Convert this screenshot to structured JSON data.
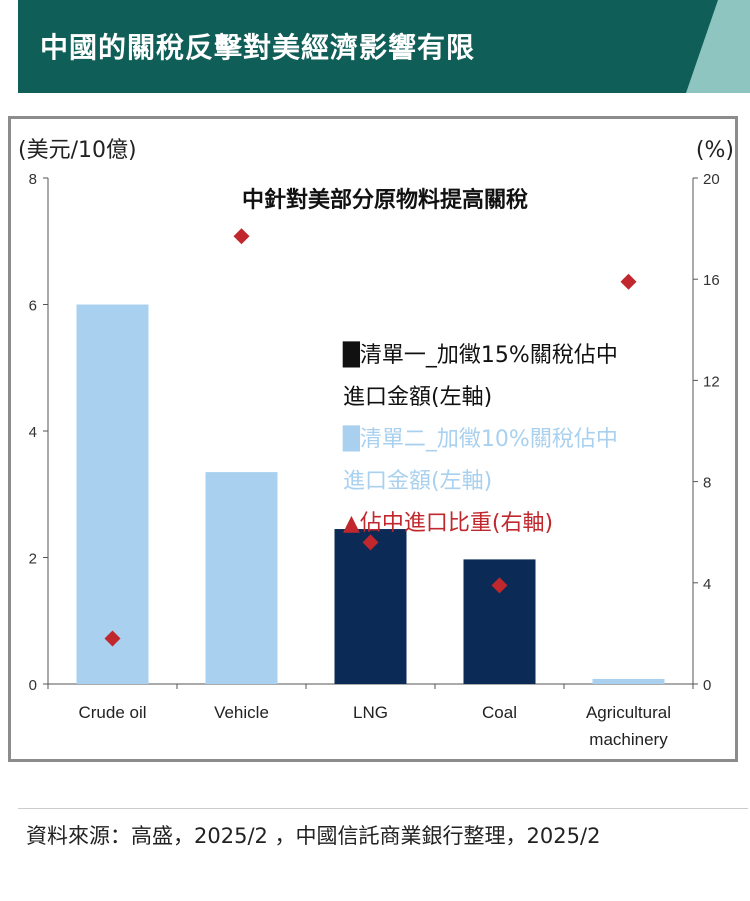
{
  "header": {
    "title": "中國的關稅反擊對美經濟影響有限",
    "accent_color": "#0f5e57",
    "stripe_color": "#8ec5c0"
  },
  "chart_data": {
    "type": "bar",
    "title": "中針對美部分原物料提高關稅",
    "categories": [
      "Crude oil",
      "Vehicle",
      "LNG",
      "Coal",
      "Agricultural machinery"
    ],
    "category_lines": [
      [
        "Crude oil"
      ],
      [
        "Vehicle"
      ],
      [
        "LNG"
      ],
      [
        "Coal"
      ],
      [
        "Agricultural",
        "machinery"
      ]
    ],
    "series": [
      {
        "name": "清單一_加徵15%關稅佔中進口金額(左軸)",
        "name_lines": [
          "清單一_加徵15%關稅佔中",
          "進口金額(左軸)"
        ],
        "axis": "left",
        "color": "#0b2a55",
        "values": [
          0,
          0,
          2.45,
          1.97,
          0
        ]
      },
      {
        "name": "清單二_加徵10%關稅佔中進口金額(左軸)",
        "name_lines": [
          "清單二_加徵10%關稅佔中",
          "進口金額(左軸)"
        ],
        "axis": "left",
        "color": "#a9d1ef",
        "values": [
          6.0,
          3.35,
          0,
          0,
          0.08
        ]
      },
      {
        "name": "佔中進口比重(右軸)",
        "name_lines": [
          "佔中進口比重(右軸)"
        ],
        "axis": "right",
        "marker": "diamond",
        "color": "#c0282d",
        "values": [
          1.8,
          17.7,
          5.6,
          3.9,
          15.9
        ]
      }
    ],
    "ylabel_left": "(美元/10億)",
    "ylabel_right": "(%)",
    "ylim_left": [
      0,
      8
    ],
    "ylim_right": [
      0,
      20
    ],
    "yticks_left": [
      0,
      2,
      4,
      6,
      8
    ],
    "yticks_right": [
      0,
      4,
      8,
      12,
      16,
      20
    ],
    "legend_placement": "center-right",
    "legend_marker_symbols": [
      "█",
      "█",
      "▲"
    ],
    "grid": false
  },
  "footer": {
    "source_text": "資料來源：高盛，2025/2 ，中國信託商業銀行整理，2025/2"
  }
}
